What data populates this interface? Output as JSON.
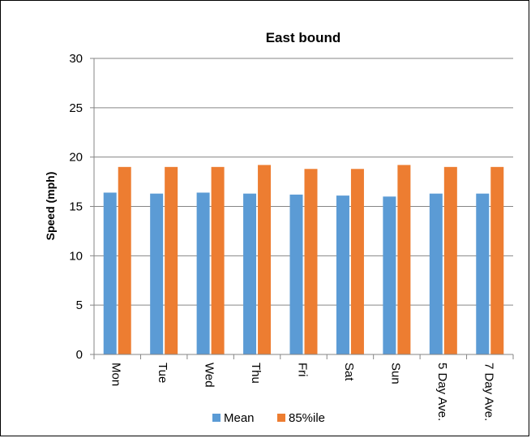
{
  "chart_data": {
    "type": "bar",
    "title": "East bound",
    "xlabel": "",
    "ylabel": "Speed (mph)",
    "ylim": [
      0,
      30
    ],
    "yticks": [
      0,
      5,
      10,
      15,
      20,
      25,
      30
    ],
    "grid": true,
    "legend_position": "bottom",
    "categories": [
      "Mon",
      "Tue",
      "Wed",
      "Thu",
      "Fri",
      "Sat",
      "Sun",
      "5 Day Ave.",
      "7 Day Ave."
    ],
    "series": [
      {
        "name": "Mean",
        "color": "#5B9BD5",
        "values": [
          16.4,
          16.3,
          16.4,
          16.3,
          16.2,
          16.1,
          16.0,
          16.3,
          16.3
        ]
      },
      {
        "name": "85%ile",
        "color": "#ED7D31",
        "values": [
          19.0,
          19.0,
          19.0,
          19.2,
          18.8,
          18.8,
          19.2,
          19.0,
          19.0
        ]
      }
    ]
  }
}
